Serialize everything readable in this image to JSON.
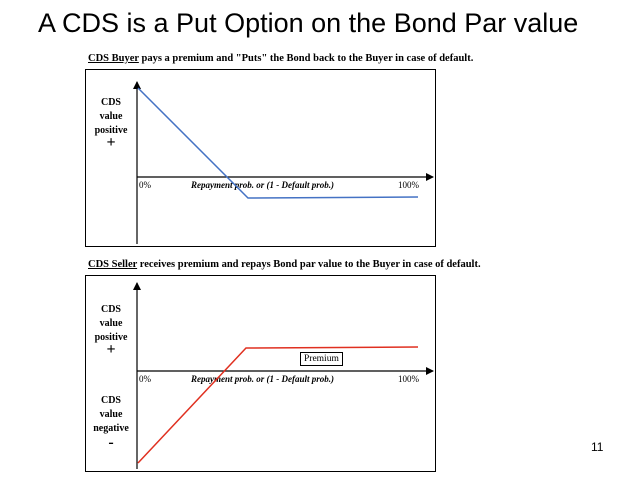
{
  "title": "A CDS is a Put Option on the Bond Par value",
  "buyer": {
    "caption_underlined": "CDS Buyer",
    "caption_rest": " pays a premium and \"Puts\" the Bond back to the Buyer in case of default.",
    "side_label_line1": "CDS",
    "side_label_line2": "value",
    "side_label_line3": "positive",
    "sign": "+",
    "tick_start": "0%",
    "tick_end": "100%",
    "x_axis_label": "Repayment prob. or (1 - Default prob.)",
    "line_color": "#4472c4"
  },
  "seller": {
    "caption_underlined": "CDS Seller",
    "caption_rest": " receives premium and repays Bond par value to the Buyer in case of default.",
    "positive_line1": "CDS",
    "positive_line2": "value",
    "positive_line3": "positive",
    "positive_sign": "+",
    "negative_line1": "CDS",
    "negative_line2": "value",
    "negative_line3": "negative",
    "negative_sign": "-",
    "tick_start": "0%",
    "tick_end": "100%",
    "x_axis_label": "Repayment prob. or (1 - Default prob.)",
    "premium_label": "Premium",
    "line_color": "#e03020"
  },
  "page_number": "11"
}
